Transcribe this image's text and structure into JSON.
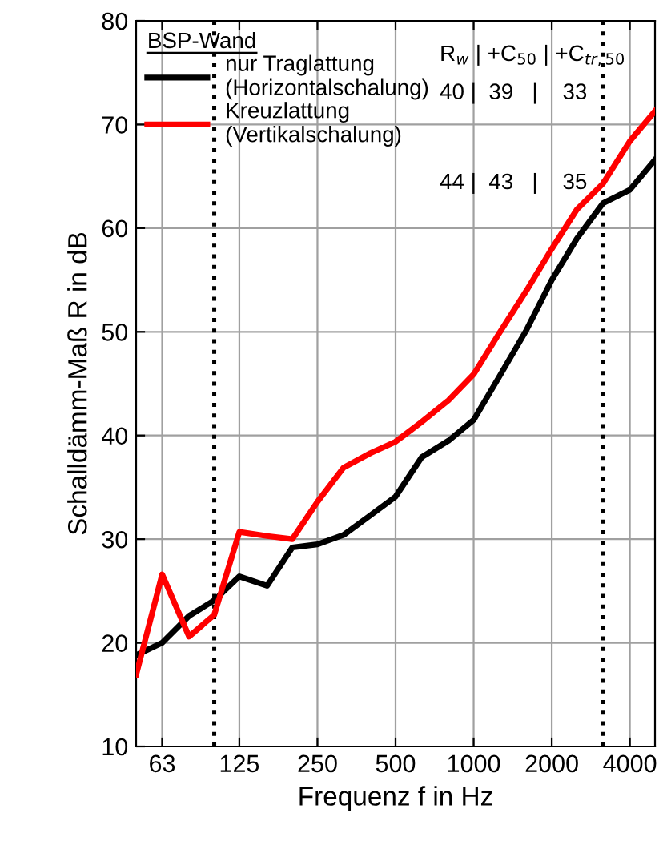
{
  "chart_data": {
    "type": "line",
    "xlabel": "Frequenz f in Hz",
    "ylabel": "Schalldämm-Maß R in dB",
    "legend_title": "BSP-Wand",
    "x": [
      50,
      63,
      80,
      100,
      125,
      160,
      200,
      250,
      315,
      400,
      500,
      630,
      800,
      1000,
      1250,
      1600,
      2000,
      2500,
      3150,
      4000,
      5000
    ],
    "series": [
      {
        "name": "nur Traglattung\n(Horizontalschalung)",
        "color": "#000000",
        "values": [
          18.8,
          20.0,
          22.6,
          24.1,
          26.4,
          25.5,
          29.2,
          29.5,
          30.4,
          32.3,
          34.1,
          37.9,
          39.5,
          41.5,
          45.6,
          50.2,
          55.0,
          59.0,
          62.4,
          63.7,
          66.6
        ]
      },
      {
        "name": "Kreuzlattung\n(Vertikalschalung)",
        "color": "#ff0000",
        "values": [
          16.9,
          26.6,
          20.6,
          22.7,
          30.7,
          30.3,
          30.0,
          33.6,
          36.9,
          38.3,
          39.4,
          41.3,
          43.4,
          45.9,
          49.8,
          54.0,
          58.0,
          61.8,
          64.3,
          68.4,
          71.3
        ]
      }
    ],
    "annotations": [
      "R$_{w}$ | +C$_{50}$ | +C$_{tr,50}$",
      "40 |  39   |    33",
      "44 |  43   |    35"
    ],
    "ref_lines": [
      {
        "axis": "x",
        "value": 100,
        "color": "#000000",
        "line_style": "dotted"
      },
      {
        "axis": "x",
        "value": 3150,
        "color": "#000000",
        "line_style": "dotted"
      }
    ],
    "log": "x",
    "xlim": [
      50,
      5000
    ],
    "xticks": [
      63,
      125,
      250,
      500,
      1000,
      2000,
      4000
    ],
    "ylim": [
      10,
      80
    ],
    "yticks": [
      10,
      20,
      30,
      40,
      50,
      60,
      70,
      80
    ],
    "grid": true,
    "legend": "top left",
    "marker": "none",
    "line_style": "solid"
  }
}
